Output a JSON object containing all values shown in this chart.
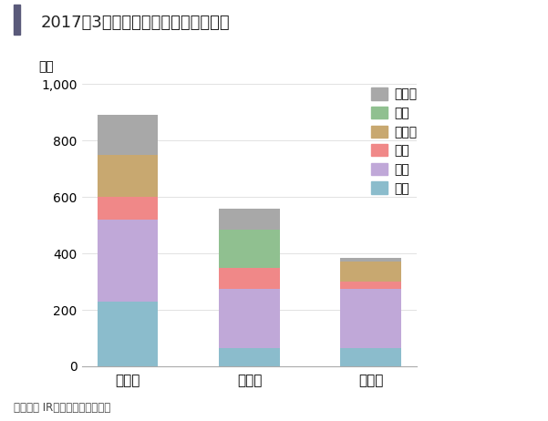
{
  "title": "2017年3月期のグループ販売台数計画",
  "ylabel": "万台",
  "footnote": "（出所） IR資料を基に筆者作成",
  "categories": [
    "トヨタ",
    "日　産",
    "ホンダ"
  ],
  "segments": [
    "日本",
    "北米",
    "欧州",
    "アジア",
    "中国",
    "その他"
  ],
  "values": {
    "トヨタ": [
      230,
      290,
      80,
      150,
      0,
      140
    ],
    "日　産": [
      65,
      210,
      75,
      0,
      135,
      75
    ],
    "ホンダ": [
      65,
      210,
      25,
      70,
      0,
      15
    ]
  },
  "colors": [
    "#8bbccc",
    "#c0a8d8",
    "#f08888",
    "#c8a870",
    "#90c090",
    "#a8a8a8"
  ],
  "ylim": [
    0,
    1000
  ],
  "yticks": [
    0,
    200,
    400,
    600,
    800,
    1000
  ],
  "title_color": "#222222",
  "background_color": "#ffffff",
  "title_fontsize": 13,
  "axis_fontsize": 10,
  "legend_fontsize": 10,
  "bar_width": 0.5,
  "accent_color": "#5a5a7a"
}
